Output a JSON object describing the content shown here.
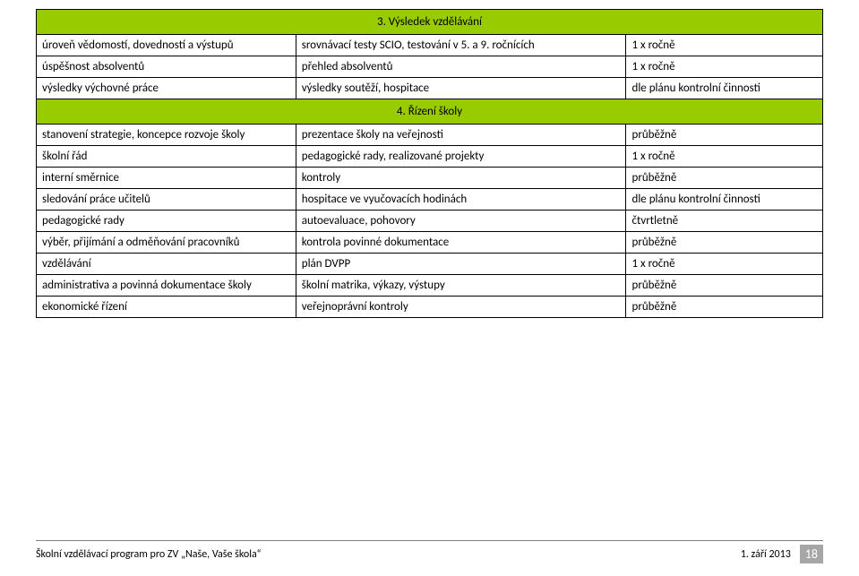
{
  "table": {
    "header_bg": "#99cc00",
    "border_color": "#000000",
    "section3_title": "3.  Výsledek vzdělávání",
    "section3_rows": [
      {
        "c1": "úroveň vědomostí, dovedností a výstupů",
        "c2": "srovnávací testy SCIO, testování v 5. a 9. ročnících",
        "c3": "1 x ročně"
      },
      {
        "c1": "úspěšnost absolventů",
        "c2": "přehled absolventů",
        "c3": "1 x ročně"
      },
      {
        "c1": "výsledky výchovné práce",
        "c2": "výsledky soutěží, hospitace",
        "c3": "dle plánu kontrolní činnosti"
      }
    ],
    "section4_title": "4.  Řízení školy",
    "section4_rows": [
      {
        "c1": "stanovení strategie, koncepce rozvoje školy",
        "c2": "prezentace školy na veřejnosti",
        "c3": "průběžně"
      },
      {
        "c1": "školní řád",
        "c2": "pedagogické rady, realizované projekty",
        "c3": "1 x ročně"
      },
      {
        "c1": "interní směrnice",
        "c2": "kontroly",
        "c3": "průběžně"
      },
      {
        "c1": "sledování práce učitelů",
        "c2": "hospitace ve vyučovacích hodinách",
        "c3": "dle plánu kontrolní činnosti"
      },
      {
        "c1": "pedagogické rady",
        "c2": "autoevaluace, pohovory",
        "c3": "čtvrtletně"
      },
      {
        "c1": "výběr, přijímání a odměňování pracovníků",
        "c2": "kontrola povinné dokumentace",
        "c3": "průběžně"
      },
      {
        "c1": "vzdělávání",
        "c2": "plán DVPP",
        "c3": "1 x ročně"
      },
      {
        "c1": "administrativa a povinná dokumentace školy",
        "c2": "školní matrika, výkazy, výstupy",
        "c3": "průběžně"
      },
      {
        "c1": "ekonomické řízení",
        "c2": "veřejnoprávní kontroly",
        "c3": "průběžně"
      }
    ]
  },
  "footer": {
    "left": "Školní vzdělávací program pro ZV „Naše, Vaše škola“",
    "date": "1. září 2013",
    "page": "18",
    "pagebox_bg": "#a6a6a6",
    "pagebox_fg": "#ffffff"
  }
}
